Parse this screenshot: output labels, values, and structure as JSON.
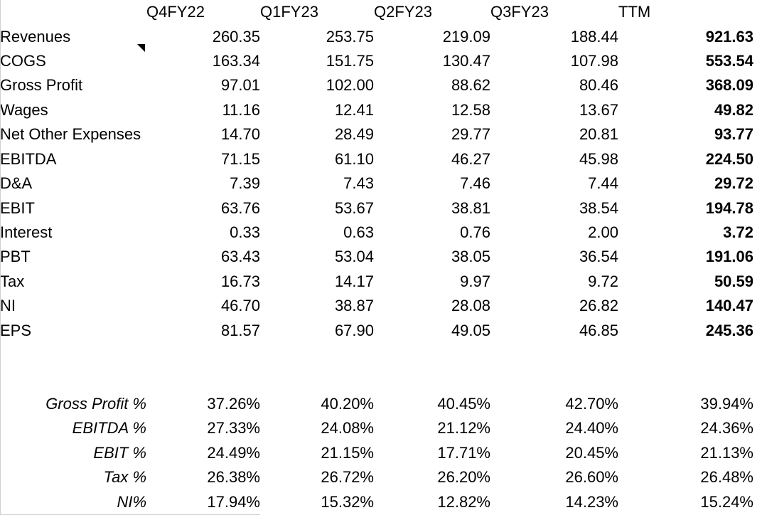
{
  "sheet": {
    "columns": [
      "Q4FY22",
      "Q1FY23",
      "Q2FY23",
      "Q3FY23",
      "TTM"
    ],
    "income_rows": [
      {
        "label": "Revenues",
        "note": false,
        "values": [
          "260.35",
          "253.75",
          "219.09",
          "188.44",
          "921.63"
        ]
      },
      {
        "label": "COGS",
        "note": true,
        "values": [
          "163.34",
          "151.75",
          "130.47",
          "107.98",
          "553.54"
        ]
      },
      {
        "label": "Gross Profit",
        "note": false,
        "values": [
          "97.01",
          "102.00",
          "88.62",
          "80.46",
          "368.09"
        ]
      },
      {
        "label": "Wages",
        "note": false,
        "values": [
          "11.16",
          "12.41",
          "12.58",
          "13.67",
          "49.82"
        ]
      },
      {
        "label": "Net Other Expenses",
        "note": false,
        "values": [
          "14.70",
          "28.49",
          "29.77",
          "20.81",
          "93.77"
        ]
      },
      {
        "label": "EBITDA",
        "note": false,
        "values": [
          "71.15",
          "61.10",
          "46.27",
          "45.98",
          "224.50"
        ]
      },
      {
        "label": "D&A",
        "note": false,
        "values": [
          "7.39",
          "7.43",
          "7.46",
          "7.44",
          "29.72"
        ]
      },
      {
        "label": "EBIT",
        "note": false,
        "values": [
          "63.76",
          "53.67",
          "38.81",
          "38.54",
          "194.78"
        ]
      },
      {
        "label": "Interest",
        "note": false,
        "values": [
          "0.33",
          "0.63",
          "0.76",
          "2.00",
          "3.72"
        ]
      },
      {
        "label": "PBT",
        "note": false,
        "values": [
          "63.43",
          "53.04",
          "38.05",
          "36.54",
          "191.06"
        ]
      },
      {
        "label": "Tax",
        "note": false,
        "values": [
          "16.73",
          "14.17",
          "9.97",
          "9.72",
          "50.59"
        ]
      },
      {
        "label": "NI",
        "note": false,
        "values": [
          "46.70",
          "38.87",
          "28.08",
          "26.82",
          "140.47"
        ]
      },
      {
        "label": "EPS",
        "note": false,
        "values": [
          "81.57",
          "67.90",
          "49.05",
          "46.85",
          "245.36"
        ]
      }
    ],
    "spacer_row_count": 2,
    "ratio_rows": [
      {
        "label": "Gross Profit %",
        "values": [
          "37.26%",
          "40.20%",
          "40.45%",
          "42.70%",
          "39.94%"
        ]
      },
      {
        "label": "EBITDA %",
        "values": [
          "27.33%",
          "24.08%",
          "21.12%",
          "24.40%",
          "24.36%"
        ]
      },
      {
        "label": "EBIT %",
        "values": [
          "24.49%",
          "21.15%",
          "17.71%",
          "20.45%",
          "21.13%"
        ]
      },
      {
        "label": "Tax %",
        "values": [
          "26.38%",
          "26.72%",
          "26.20%",
          "26.60%",
          "26.48%"
        ]
      },
      {
        "label": "NI%",
        "values": [
          "17.94%",
          "15.32%",
          "12.82%",
          "14.23%",
          "15.24%"
        ]
      }
    ],
    "colors": {
      "text": "#000000",
      "background": "#ffffff",
      "gridline": "#d0d0d0",
      "note_indicator": "#000000"
    }
  }
}
